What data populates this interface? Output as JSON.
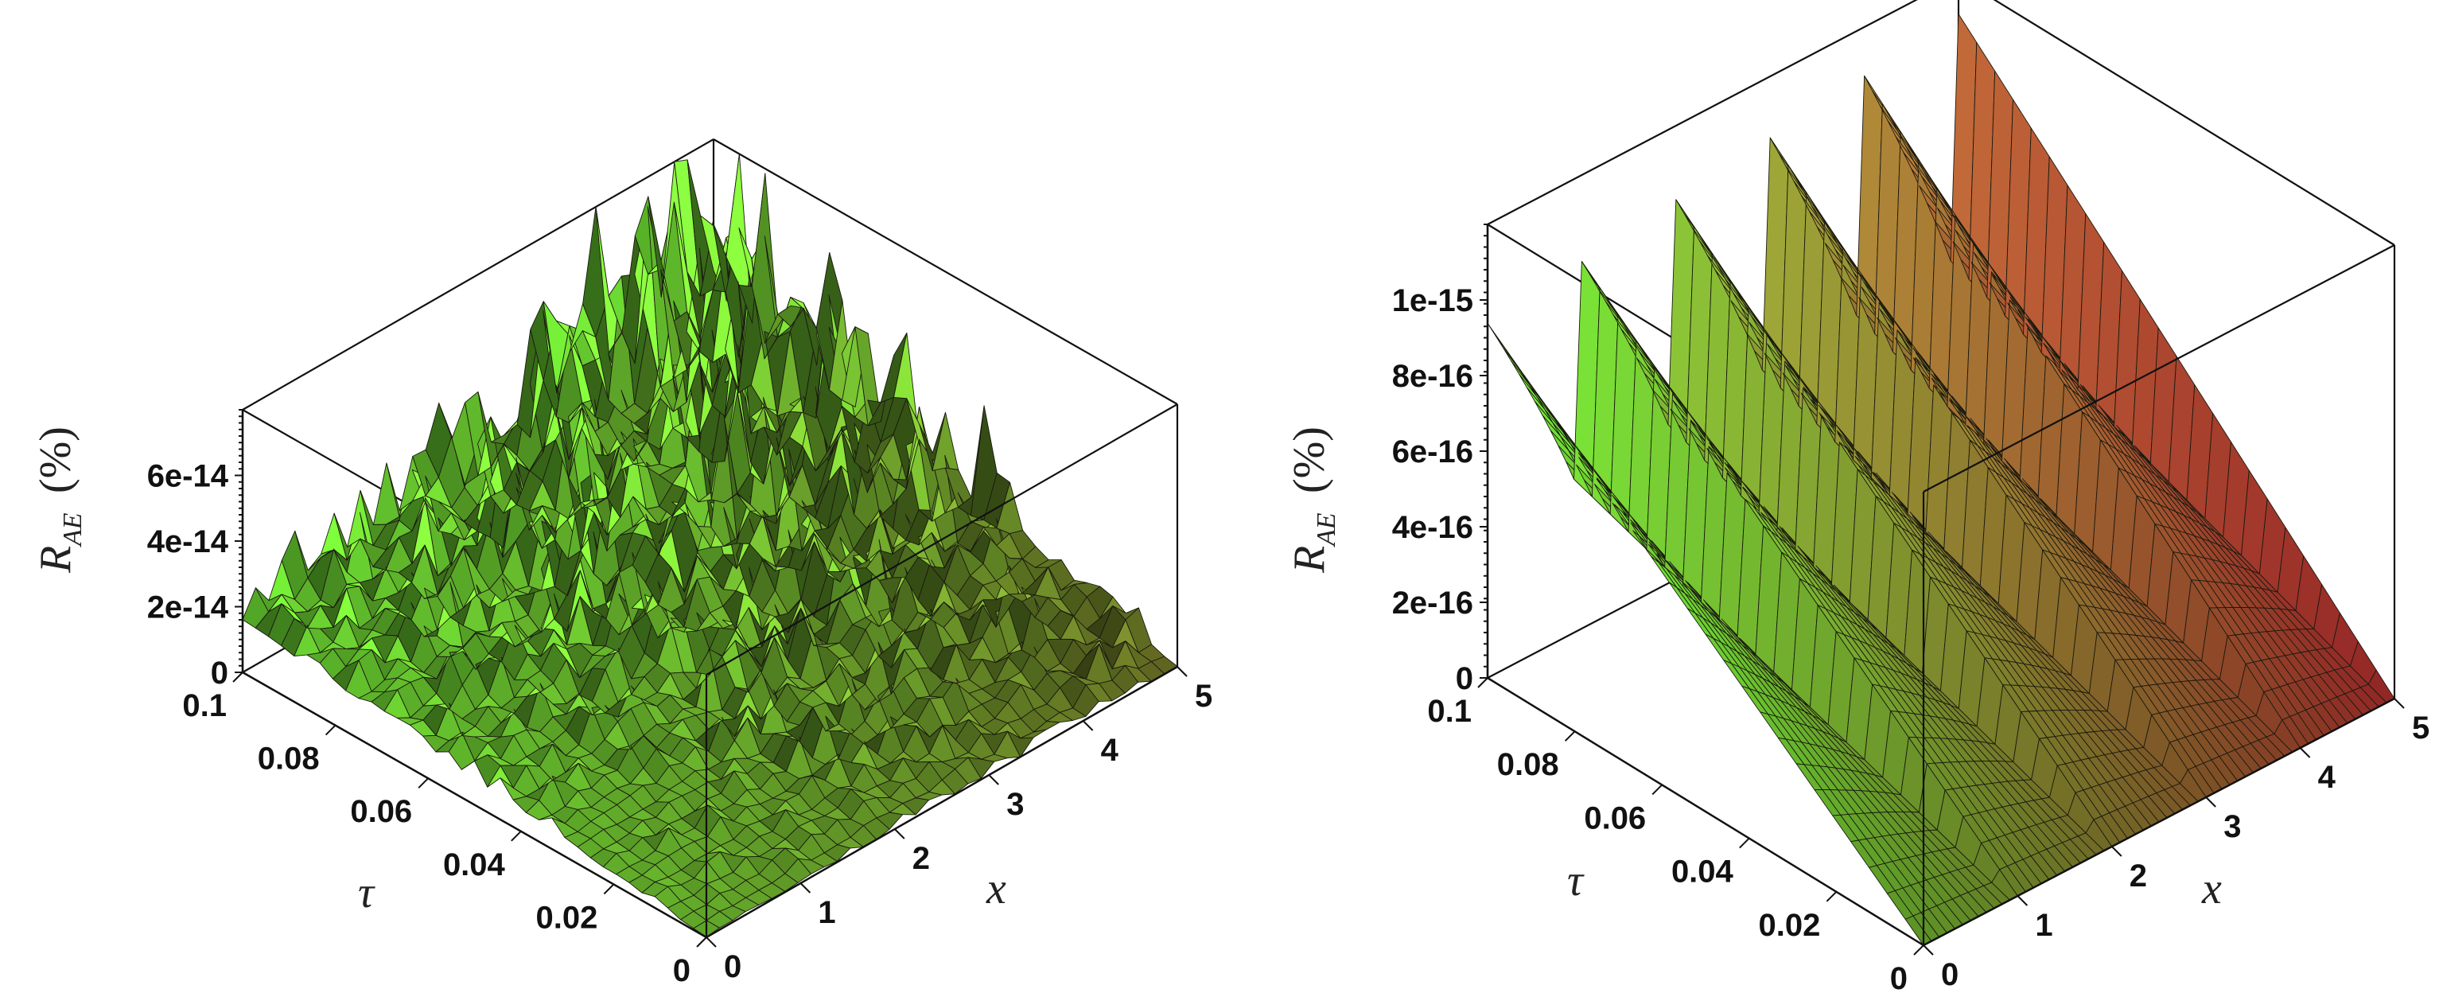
{
  "chart_data": [
    {
      "type": "surface",
      "panel": "left",
      "zlabel_main": "R",
      "zlabel_sub": "AE",
      "zlabel_unit": "(%)",
      "xlabel": "x",
      "ylabel": "τ",
      "x_ticks": [
        "0",
        "1",
        "2",
        "3",
        "4",
        "5"
      ],
      "tau_ticks": [
        "0",
        "0.02",
        "0.04",
        "0.06",
        "0.08",
        "0.1"
      ],
      "z_ticks": [
        "0",
        "2e-14",
        "4e-14",
        "6e-14"
      ],
      "x_range": [
        0,
        5
      ],
      "tau_range": [
        0,
        0.1
      ],
      "z_range": [
        0,
        8e-14
      ],
      "surface_trend": "noisy round-off error, rising with τ and x, peaks near 8e-14",
      "colors": {
        "low": "#7a3520",
        "high": "#7dff3a"
      }
    },
    {
      "type": "surface",
      "panel": "right",
      "zlabel_main": "R",
      "zlabel_sub": "AE",
      "zlabel_unit": "(%)",
      "xlabel": "x",
      "ylabel": "τ",
      "x_ticks": [
        "0",
        "1",
        "2",
        "3",
        "4",
        "5"
      ],
      "tau_ticks": [
        "0",
        "0.02",
        "0.04",
        "0.06",
        "0.08",
        "0.1"
      ],
      "z_ticks": [
        "0",
        "2e-16",
        "4e-16",
        "6e-16",
        "8e-16",
        "1e-15"
      ],
      "x_range": [
        0,
        5
      ],
      "tau_range": [
        0,
        0.1
      ],
      "z_range": [
        0,
        1.2e-15
      ],
      "surface_trend": "smooth sawtooth ridges, linear growth with τ, peaks near 1.1e-15",
      "colors": {
        "low": "#e03a3a",
        "high": "#7dff3a"
      }
    }
  ]
}
